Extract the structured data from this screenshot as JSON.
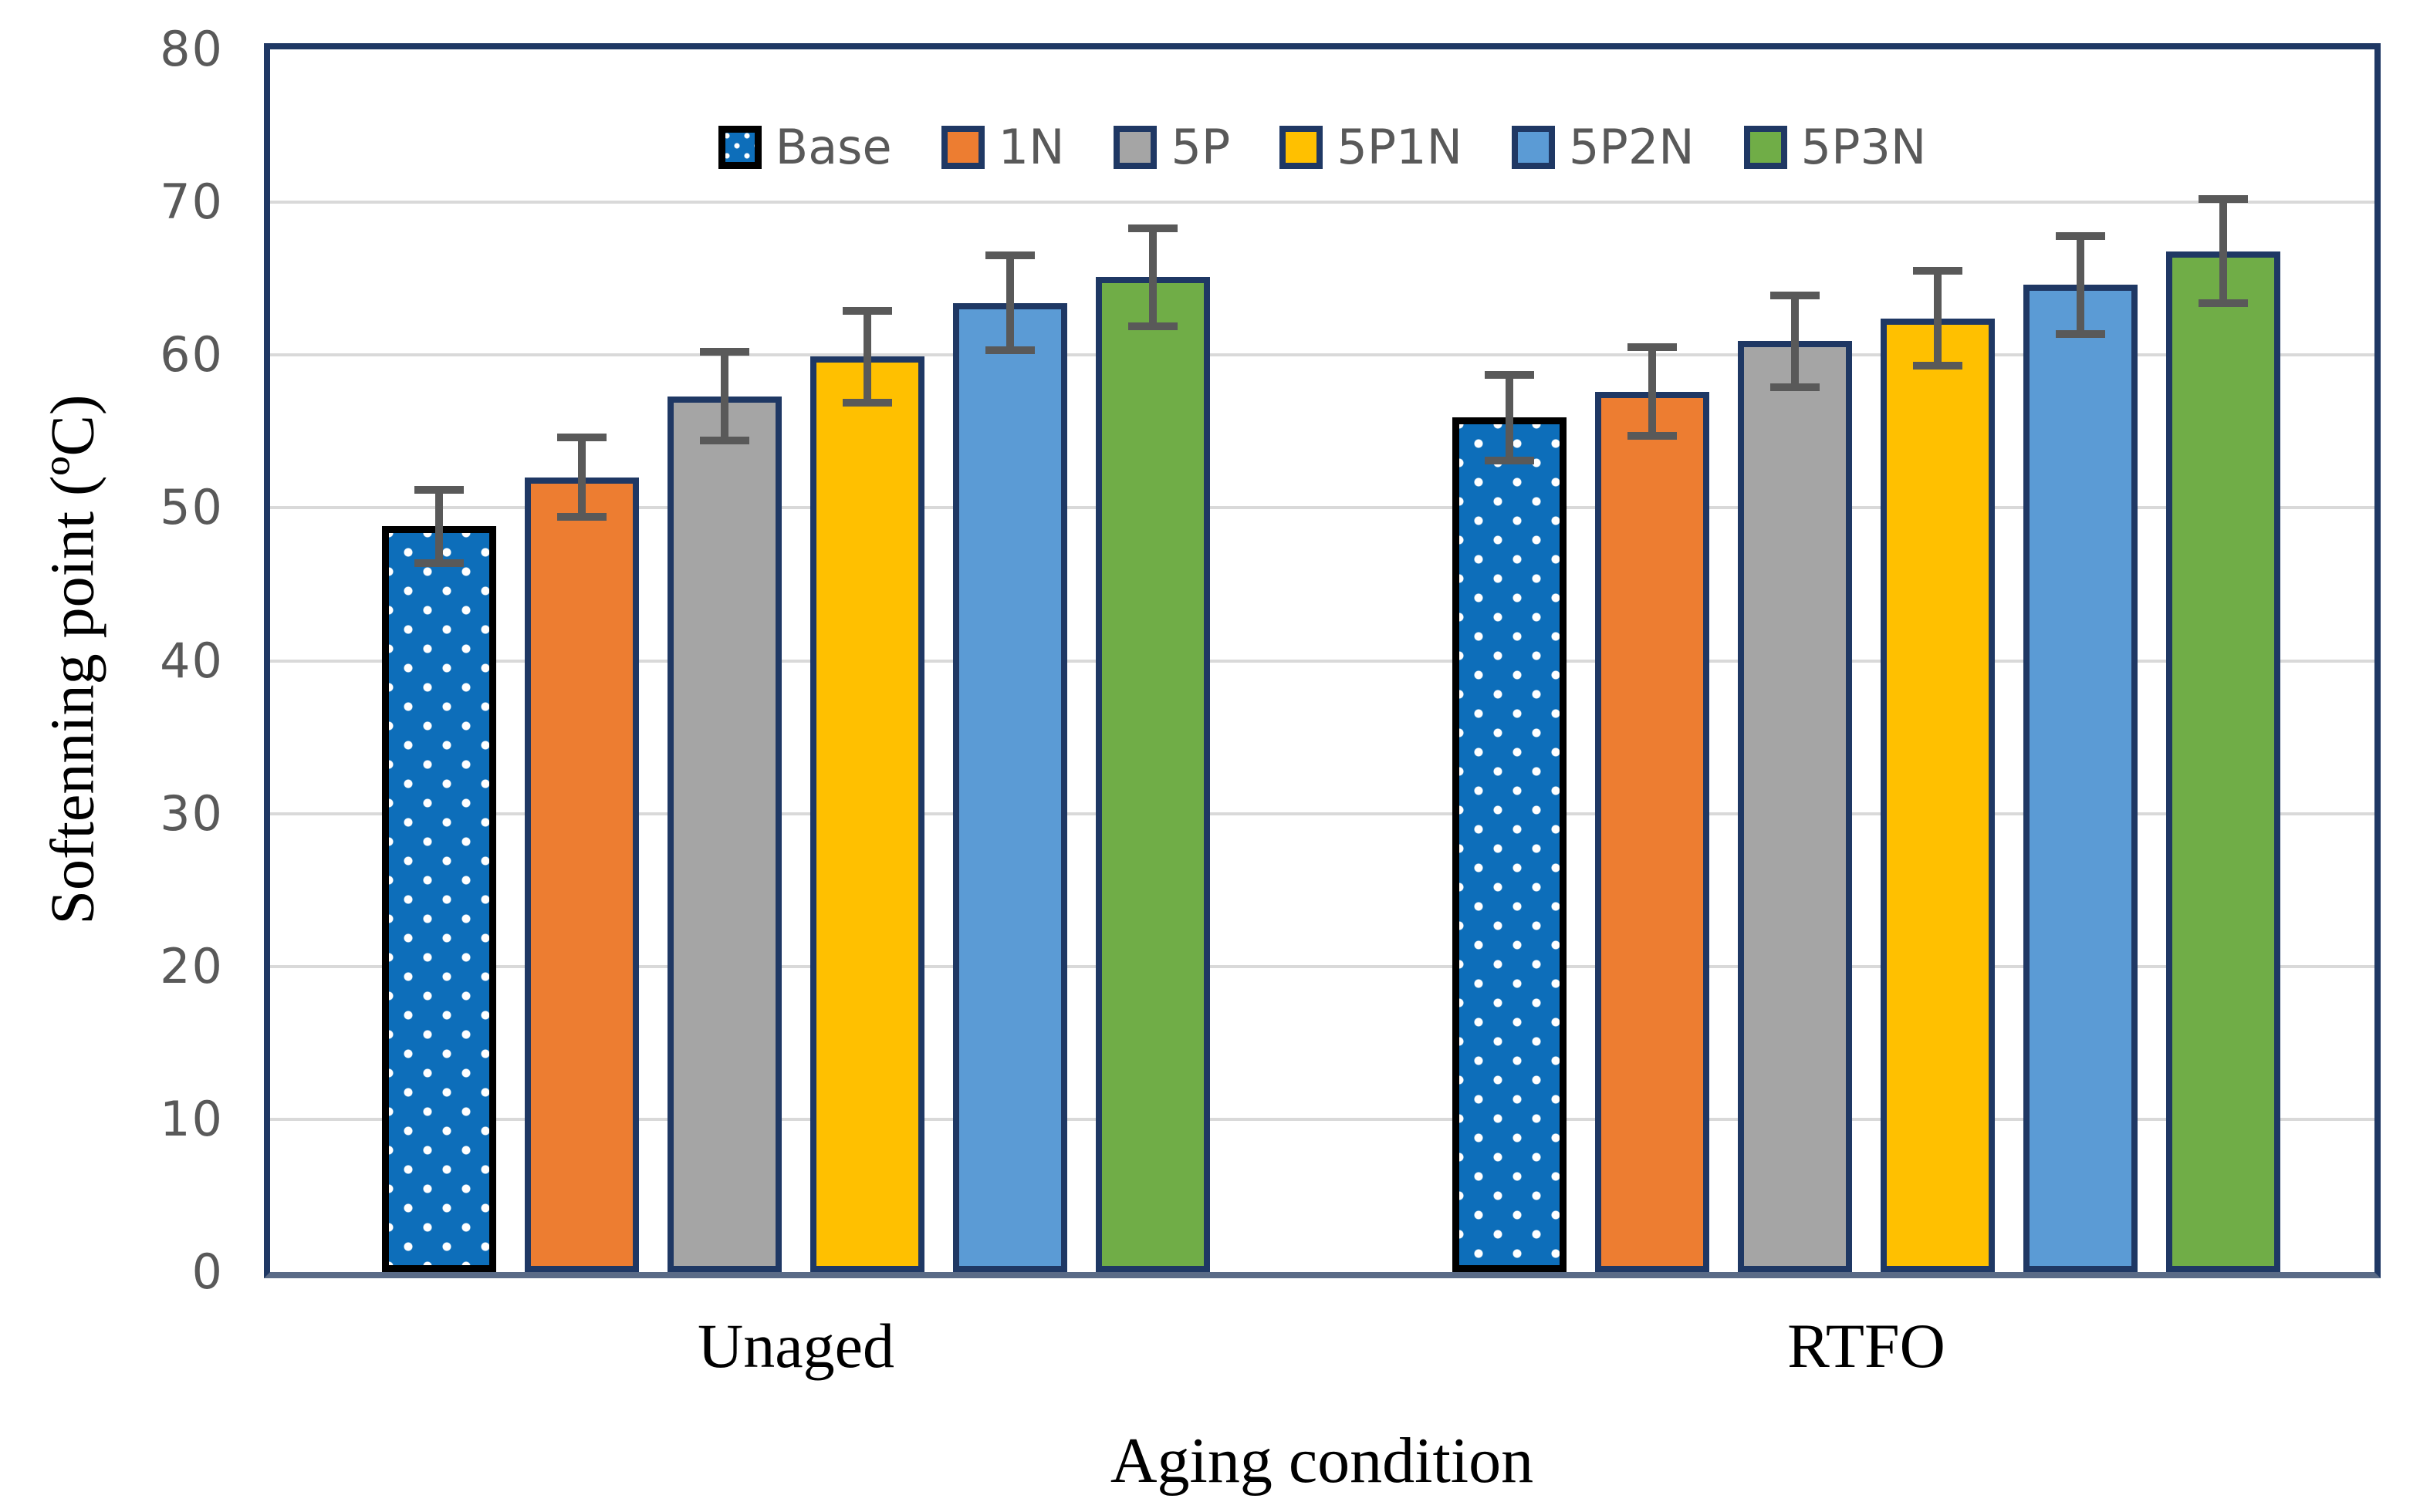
{
  "figure": {
    "background": "#FFFFFF",
    "plot_border_color": "#1F3864",
    "axis_line_color": "#5A6B87",
    "gridline_color": "#D9D9D9",
    "tick_label_color": "#595959",
    "legend_text_color": "#595959",
    "error_bar_color": "#595959",
    "title_text_color": "#000000"
  },
  "chart_data": {
    "type": "bar",
    "title": "",
    "xlabel": "Aging condition",
    "ylabel": "Softenning point (ºC)",
    "ylim": [
      0,
      80
    ],
    "yticks": [
      0,
      10,
      20,
      30,
      40,
      50,
      60,
      70,
      80
    ],
    "grid": true,
    "legend_position": "top-center",
    "categories": [
      "Unaged",
      "RTFO"
    ],
    "series": [
      {
        "name": "Base",
        "color": "#0D6EBA",
        "border_color": "#000000",
        "pattern": "white-dots",
        "values": [
          48.8,
          55.9
        ],
        "error": [
          2.4,
          2.8
        ]
      },
      {
        "name": "1N",
        "color": "#ED7D31",
        "border_color": "#1F3864",
        "pattern": "solid",
        "values": [
          52.0,
          57.6
        ],
        "error": [
          2.6,
          2.9
        ]
      },
      {
        "name": "5P",
        "color": "#A5A5A5",
        "border_color": "#1F3864",
        "pattern": "solid",
        "values": [
          57.3,
          60.9
        ],
        "error": [
          2.9,
          3.0
        ]
      },
      {
        "name": "5P1N",
        "color": "#FFC000",
        "border_color": "#1F3864",
        "pattern": "solid",
        "values": [
          59.9,
          62.4
        ],
        "error": [
          3.0,
          3.1
        ]
      },
      {
        "name": "5P2N",
        "color": "#5B9BD5",
        "border_color": "#1F3864",
        "pattern": "solid",
        "values": [
          63.4,
          64.6
        ],
        "error": [
          3.1,
          3.2
        ]
      },
      {
        "name": "5P3N",
        "color": "#70AD47",
        "border_color": "#1F3864",
        "pattern": "solid",
        "values": [
          65.1,
          66.8
        ],
        "error": [
          3.2,
          3.4
        ]
      }
    ]
  }
}
